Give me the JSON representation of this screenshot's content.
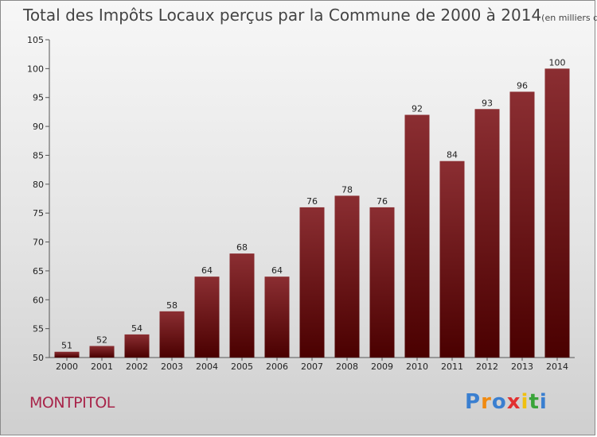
{
  "title": "Total des Impôts Locaux perçus par la Commune de 2000 à 2014",
  "subtitle": "(en milliers d'€)",
  "commune": "MONTPITOL",
  "logo": [
    "P",
    "r",
    "o",
    "x",
    "i",
    "t",
    "i"
  ],
  "colors": {
    "bar_top": "#8b2e32",
    "bar_bottom": "#4a0000",
    "commune": "#a8254a",
    "logo": [
      "#3a7fd0",
      "#f08a10",
      "#3a7fd0",
      "#e23030",
      "#f0c010",
      "#3aa43a",
      "#3a7fd0"
    ]
  },
  "chart_data": {
    "type": "bar",
    "categories": [
      "2000",
      "2001",
      "2002",
      "2003",
      "2004",
      "2005",
      "2006",
      "2007",
      "2008",
      "2009",
      "2010",
      "2011",
      "2012",
      "2013",
      "2014"
    ],
    "values": [
      51,
      52,
      54,
      58,
      64,
      68,
      64,
      76,
      78,
      76,
      92,
      84,
      93,
      96,
      100
    ],
    "ylim": [
      50,
      105
    ],
    "yticks": [
      50,
      55,
      60,
      65,
      70,
      75,
      80,
      85,
      90,
      95,
      100,
      105
    ],
    "grid": false
  }
}
